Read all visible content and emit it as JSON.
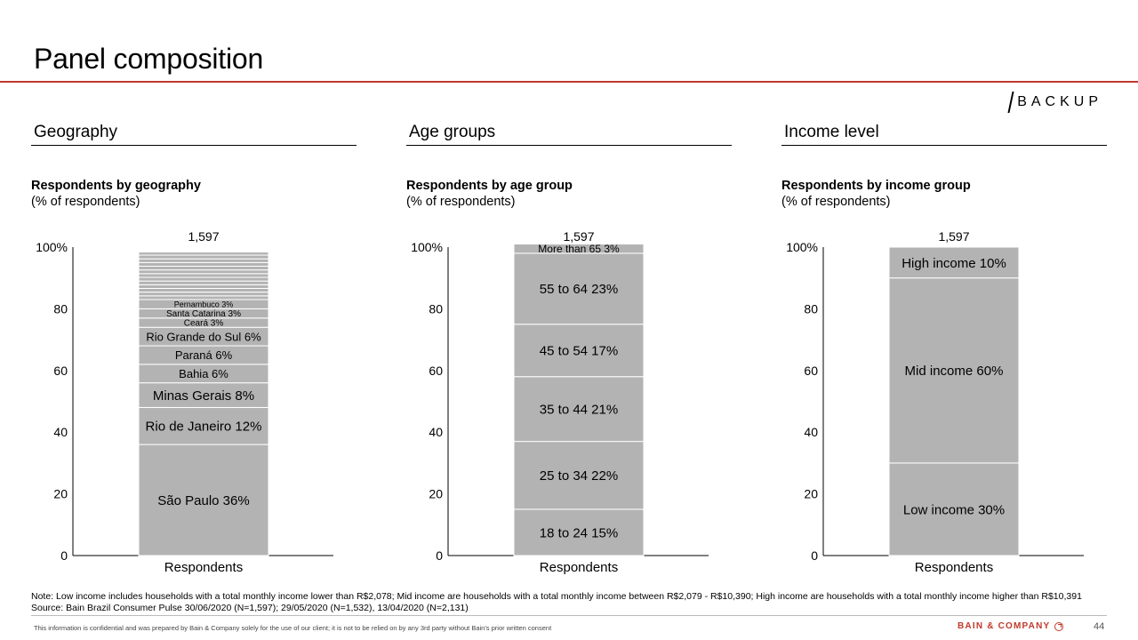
{
  "page": {
    "title": "Panel composition",
    "tag": "BACKUP",
    "note": "Note: Low income includes households with a total monthly income lower than R$2,078; Mid income are households with a total monthly income between R$2,079 - R$10,390; High income are households with a total monthly income higher than R$10,391",
    "source": "Source: Bain Brazil Consumer Pulse 30/06/2020 (N=1,597); 29/05/2020 (N=1,532), 13/04/2020 (N=2,131)",
    "confidential": "This information is confidential and was prepared by Bain & Company solely for the use of our client; it is not to be relied on by any 3rd party without Bain's prior written consent",
    "logo": "BAIN & COMPANY",
    "page_number": "44",
    "accent_color": "#c0392b",
    "bar_color": "#b3b3b3"
  },
  "panels": [
    {
      "heading": "Geography",
      "subtitle": "Respondents by geography",
      "unit": "(% of respondents)"
    },
    {
      "heading": "Age groups",
      "subtitle": "Respondents by age group",
      "unit": "(% of respondents)"
    },
    {
      "heading": "Income level",
      "subtitle": "Respondents by income group",
      "unit": "(% of respondents)"
    }
  ],
  "chart_data": [
    {
      "type": "bar",
      "stacked": true,
      "categories": [
        "Respondents"
      ],
      "total_label": "1,597",
      "yticks": [
        "0",
        "20",
        "40",
        "60",
        "80",
        "100%"
      ],
      "ylim": [
        0,
        100
      ],
      "series": [
        {
          "name": "São Paulo",
          "value": 36,
          "label": "São Paulo 36%",
          "font": 15
        },
        {
          "name": "Rio de Janeiro",
          "value": 12,
          "label": "Rio de Janeiro 12%",
          "font": 15
        },
        {
          "name": "Minas Gerais",
          "value": 8,
          "label": "Minas Gerais 8%",
          "font": 15
        },
        {
          "name": "Bahia",
          "value": 6,
          "label": "Bahia 6%",
          "font": 13
        },
        {
          "name": "Paraná",
          "value": 6,
          "label": "Paraná 6%",
          "font": 13
        },
        {
          "name": "Rio Grande do Sul",
          "value": 6,
          "label": "Rio Grande do Sul 6%",
          "font": 13
        },
        {
          "name": "Ceará",
          "value": 3,
          "label": "Ceará 3%",
          "font": 10
        },
        {
          "name": "Santa Catarina",
          "value": 3,
          "label": "Santa Catarina 3%",
          "font": 10
        },
        {
          "name": "Pernambuco",
          "value": 3,
          "label": "Pernambuco 3%",
          "font": 9
        },
        {
          "value": 1.2,
          "label": ""
        },
        {
          "value": 1.2,
          "label": ""
        },
        {
          "value": 1.2,
          "label": ""
        },
        {
          "value": 1.2,
          "label": ""
        },
        {
          "value": 1.2,
          "label": ""
        },
        {
          "value": 1.2,
          "label": ""
        },
        {
          "value": 1.2,
          "label": ""
        },
        {
          "value": 1.2,
          "label": ""
        },
        {
          "value": 1.2,
          "label": ""
        },
        {
          "value": 1.2,
          "label": ""
        },
        {
          "value": 1.2,
          "label": ""
        },
        {
          "value": 1.2,
          "label": ""
        },
        {
          "value": 1.0,
          "label": ""
        }
      ]
    },
    {
      "type": "bar",
      "stacked": true,
      "categories": [
        "Respondents"
      ],
      "total_label": "1,597",
      "yticks": [
        "0",
        "20",
        "40",
        "60",
        "80",
        "100%"
      ],
      "ylim": [
        0,
        100
      ],
      "series": [
        {
          "name": "18 to 24",
          "value": 15,
          "label": "18 to 24 15%",
          "font": 15
        },
        {
          "name": "25 to 34",
          "value": 22,
          "label": "25 to 34 22%",
          "font": 15
        },
        {
          "name": "35 to 44",
          "value": 21,
          "label": "35 to 44 21%",
          "font": 15
        },
        {
          "name": "45 to 54",
          "value": 17,
          "label": "45 to 54 17%",
          "font": 15
        },
        {
          "name": "55 to 64",
          "value": 23,
          "label": "55 to 64 23%",
          "font": 15
        },
        {
          "name": "More than 65",
          "value": 3,
          "label": "More than 65 3%",
          "font": 12
        }
      ]
    },
    {
      "type": "bar",
      "stacked": true,
      "categories": [
        "Respondents"
      ],
      "total_label": "1,597",
      "yticks": [
        "0",
        "20",
        "40",
        "60",
        "80",
        "100%"
      ],
      "ylim": [
        0,
        100
      ],
      "series": [
        {
          "name": "Low income",
          "value": 30,
          "label": "Low income 30%",
          "font": 15
        },
        {
          "name": "Mid income",
          "value": 60,
          "label": "Mid income 60%",
          "font": 15
        },
        {
          "name": "High income",
          "value": 10,
          "label": "High income 10%",
          "font": 15
        }
      ]
    }
  ]
}
